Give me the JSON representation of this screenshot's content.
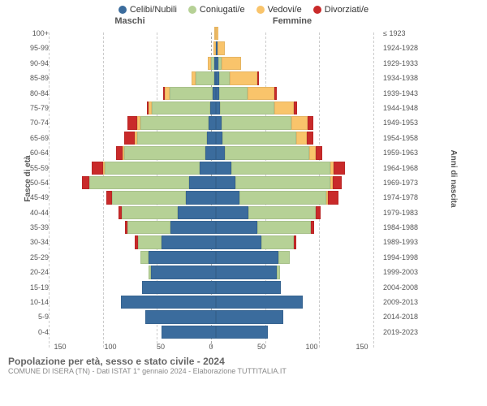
{
  "legend": [
    {
      "label": "Celibi/Nubili",
      "color": "#3b6c9d"
    },
    {
      "label": "Coniugati/e",
      "color": "#b6d196"
    },
    {
      "label": "Vedovi/e",
      "color": "#f9c46b"
    },
    {
      "label": "Divorziati/e",
      "color": "#c92a2a"
    }
  ],
  "header_male": "Maschi",
  "header_female": "Femmine",
  "y_title_left": "Fasce di età",
  "y_title_right": "Anni di nascita",
  "xaxis_ticks": [
    "150",
    "100",
    "50",
    "0",
    "50",
    "100",
    "150"
  ],
  "xmax": 150,
  "footer_title": "Popolazione per età, sesso e stato civile - 2024",
  "footer_sub": "COMUNE DI ISERA (TN) - Dati ISTAT 1° gennaio 2024 - Elaborazione TUTTITALIA.IT",
  "rows": [
    {
      "age": "100+",
      "birth": "≤ 1923",
      "m": [
        0,
        0,
        1,
        0
      ],
      "f": [
        0,
        0,
        2,
        0
      ]
    },
    {
      "age": "95-99",
      "birth": "1924-1928",
      "m": [
        0,
        0,
        2,
        0
      ],
      "f": [
        1,
        0,
        7,
        0
      ]
    },
    {
      "age": "90-94",
      "birth": "1929-1933",
      "m": [
        1,
        3,
        3,
        0
      ],
      "f": [
        2,
        3,
        18,
        0
      ]
    },
    {
      "age": "85-89",
      "birth": "1934-1938",
      "m": [
        1,
        17,
        4,
        0
      ],
      "f": [
        3,
        10,
        25,
        1
      ]
    },
    {
      "age": "80-84",
      "birth": "1939-1943",
      "m": [
        3,
        40,
        4,
        1
      ],
      "f": [
        3,
        26,
        25,
        2
      ]
    },
    {
      "age": "75-79",
      "birth": "1944-1948",
      "m": [
        5,
        54,
        3,
        2
      ],
      "f": [
        4,
        50,
        18,
        3
      ]
    },
    {
      "age": "70-74",
      "birth": "1949-1953",
      "m": [
        7,
        63,
        3,
        9
      ],
      "f": [
        5,
        65,
        15,
        5
      ]
    },
    {
      "age": "65-69",
      "birth": "1954-1958",
      "m": [
        8,
        65,
        2,
        10
      ],
      "f": [
        6,
        68,
        10,
        6
      ]
    },
    {
      "age": "60-64",
      "birth": "1959-1963",
      "m": [
        10,
        75,
        1,
        6
      ],
      "f": [
        8,
        78,
        6,
        6
      ]
    },
    {
      "age": "55-59",
      "birth": "1964-1968",
      "m": [
        15,
        88,
        1,
        10
      ],
      "f": [
        14,
        92,
        3,
        10
      ]
    },
    {
      "age": "50-54",
      "birth": "1969-1973",
      "m": [
        25,
        92,
        0,
        7
      ],
      "f": [
        18,
        88,
        2,
        8
      ]
    },
    {
      "age": "45-49",
      "birth": "1974-1978",
      "m": [
        28,
        68,
        0,
        5
      ],
      "f": [
        22,
        80,
        1,
        10
      ]
    },
    {
      "age": "40-44",
      "birth": "1979-1983",
      "m": [
        35,
        52,
        0,
        3
      ],
      "f": [
        30,
        62,
        0,
        5
      ]
    },
    {
      "age": "35-39",
      "birth": "1984-1988",
      "m": [
        42,
        40,
        0,
        2
      ],
      "f": [
        38,
        50,
        0,
        3
      ]
    },
    {
      "age": "30-34",
      "birth": "1989-1993",
      "m": [
        50,
        22,
        0,
        3
      ],
      "f": [
        42,
        30,
        0,
        2
      ]
    },
    {
      "age": "25-29",
      "birth": "1994-1998",
      "m": [
        62,
        8,
        0,
        0
      ],
      "f": [
        58,
        10,
        0,
        0
      ]
    },
    {
      "age": "20-24",
      "birth": "1999-2003",
      "m": [
        60,
        2,
        0,
        0
      ],
      "f": [
        56,
        3,
        0,
        0
      ]
    },
    {
      "age": "15-19",
      "birth": "2004-2008",
      "m": [
        68,
        0,
        0,
        0
      ],
      "f": [
        60,
        0,
        0,
        0
      ]
    },
    {
      "age": "10-14",
      "birth": "2009-2013",
      "m": [
        88,
        0,
        0,
        0
      ],
      "f": [
        80,
        0,
        0,
        0
      ]
    },
    {
      "age": "5-9",
      "birth": "2014-2018",
      "m": [
        65,
        0,
        0,
        0
      ],
      "f": [
        62,
        0,
        0,
        0
      ]
    },
    {
      "age": "0-4",
      "birth": "2019-2023",
      "m": [
        50,
        0,
        0,
        0
      ],
      "f": [
        48,
        0,
        0,
        0
      ]
    }
  ]
}
